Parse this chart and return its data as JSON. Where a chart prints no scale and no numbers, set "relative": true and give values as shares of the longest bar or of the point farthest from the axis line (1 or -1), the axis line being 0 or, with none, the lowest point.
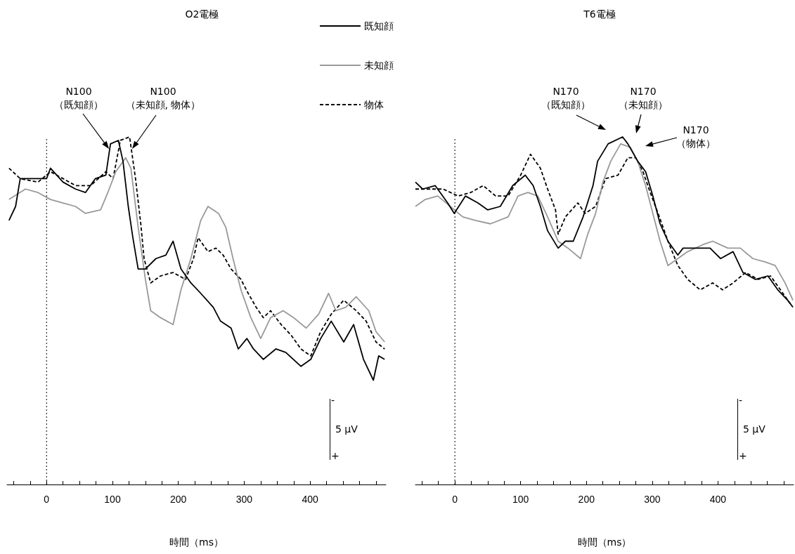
{
  "chart_data": [
    {
      "type": "line",
      "title": "O2電極",
      "xlabel": "時間（ms）",
      "relative": true,
      "legend": "top right",
      "grid": false,
      "xlim": [
        -60,
        515
      ],
      "xticks": [
        {
          "value": -50,
          "label": null
        },
        {
          "value": -25,
          "label": null
        },
        0,
        {
          "value": 25,
          "label": null
        },
        {
          "value": 50,
          "label": null
        },
        {
          "value": 75,
          "label": null
        },
        100,
        {
          "value": 125,
          "label": null
        },
        {
          "value": 150,
          "label": null
        },
        {
          "value": 175,
          "label": null
        },
        200,
        {
          "value": 225,
          "label": null
        },
        {
          "value": 250,
          "label": null
        },
        {
          "value": 275,
          "label": null
        },
        300,
        {
          "value": 325,
          "label": null
        },
        {
          "value": 350,
          "label": null
        },
        {
          "value": 375,
          "label": null
        },
        400,
        {
          "value": 425,
          "label": null
        },
        {
          "value": 450,
          "label": null
        },
        {
          "value": 475,
          "label": null
        },
        {
          "value": 500,
          "label": null
        }
      ],
      "tick_labels": "x",
      "ref_lines": [
        {
          "axis": "x",
          "value": 0,
          "line_style": "dotted",
          "color": "#000000"
        }
      ],
      "annotations": [
        "N100\n（既知顔）",
        "N100\n（未知顔, 物体）",
        "-",
        "5 μV",
        "+"
      ],
      "series": [
        {
          "name": "既知顔",
          "color": "#000000",
          "line_style": "solid",
          "x": [
            -57,
            -47,
            -40,
            -24,
            0,
            6,
            25,
            44,
            59,
            74,
            90,
            97,
            109,
            116,
            124,
            131,
            139,
            150,
            166,
            181,
            192,
            204,
            219,
            234,
            253,
            264,
            280,
            291,
            304,
            314,
            329,
            348,
            363,
            386,
            401,
            416,
            432,
            451,
            466,
            481,
            496,
            504,
            513
          ],
          "values": [
            0.76,
            0.8,
            0.88,
            0.88,
            0.88,
            0.91,
            0.87,
            0.85,
            0.84,
            0.88,
            0.89,
            0.98,
            0.99,
            0.93,
            0.8,
            0.71,
            0.62,
            0.62,
            0.65,
            0.66,
            0.7,
            0.62,
            0.58,
            0.55,
            0.51,
            0.47,
            0.45,
            0.39,
            0.42,
            0.39,
            0.36,
            0.39,
            0.38,
            0.34,
            0.36,
            0.42,
            0.47,
            0.41,
            0.46,
            0.36,
            0.3,
            0.37,
            0.36
          ]
        },
        {
          "name": "未知顔",
          "color": "#999999",
          "line_style": "solid",
          "x": [
            -57,
            -32,
            -13,
            6,
            25,
            44,
            59,
            82,
            93,
            105,
            120,
            128,
            139,
            150,
            158,
            173,
            192,
            204,
            219,
            234,
            245,
            261,
            272,
            283,
            295,
            310,
            325,
            340,
            359,
            375,
            394,
            413,
            428,
            439,
            454,
            470,
            489,
            500,
            513
          ],
          "values": [
            0.82,
            0.85,
            0.84,
            0.82,
            0.81,
            0.8,
            0.78,
            0.79,
            0.84,
            0.9,
            0.94,
            0.91,
            0.74,
            0.59,
            0.5,
            0.48,
            0.46,
            0.56,
            0.65,
            0.76,
            0.8,
            0.78,
            0.74,
            0.65,
            0.56,
            0.48,
            0.42,
            0.48,
            0.5,
            0.48,
            0.45,
            0.49,
            0.55,
            0.5,
            0.51,
            0.54,
            0.5,
            0.44,
            0.41
          ]
        },
        {
          "name": "物体",
          "color": "#000000",
          "line_style": "dashed",
          "x": [
            -57,
            -40,
            -13,
            6,
            25,
            44,
            67,
            90,
            101,
            112,
            126,
            135,
            143,
            148,
            158,
            173,
            192,
            211,
            223,
            230,
            245,
            257,
            268,
            280,
            295,
            306,
            318,
            329,
            340,
            356,
            371,
            386,
            401,
            416,
            432,
            451,
            470,
            485,
            500,
            513
          ],
          "values": [
            0.91,
            0.88,
            0.87,
            0.9,
            0.88,
            0.86,
            0.86,
            0.9,
            0.88,
            0.99,
            1.0,
            0.88,
            0.75,
            0.65,
            0.58,
            0.6,
            0.61,
            0.59,
            0.65,
            0.71,
            0.67,
            0.68,
            0.66,
            0.62,
            0.59,
            0.55,
            0.51,
            0.48,
            0.5,
            0.46,
            0.43,
            0.39,
            0.37,
            0.44,
            0.49,
            0.53,
            0.5,
            0.47,
            0.41,
            0.39
          ]
        }
      ]
    },
    {
      "type": "line",
      "title": "T6電極",
      "xlabel": "時間（ms）",
      "relative": true,
      "grid": false,
      "xlim": [
        -60,
        515
      ],
      "xticks": [
        {
          "value": -50,
          "label": null
        },
        {
          "value": -25,
          "label": null
        },
        0,
        {
          "value": 25,
          "label": null
        },
        {
          "value": 50,
          "label": null
        },
        {
          "value": 75,
          "label": null
        },
        100,
        {
          "value": 125,
          "label": null
        },
        {
          "value": 150,
          "label": null
        },
        {
          "value": 175,
          "label": null
        },
        200,
        {
          "value": 225,
          "label": null
        },
        {
          "value": 250,
          "label": null
        },
        {
          "value": 275,
          "label": null
        },
        300,
        {
          "value": 325,
          "label": null
        },
        {
          "value": 350,
          "label": null
        },
        {
          "value": 375,
          "label": null
        },
        400,
        {
          "value": 425,
          "label": null
        },
        {
          "value": 450,
          "label": null
        },
        {
          "value": 475,
          "label": null
        },
        {
          "value": 500,
          "label": null
        }
      ],
      "tick_labels": "x",
      "ref_lines": [
        {
          "axis": "x",
          "value": 0,
          "line_style": "dotted",
          "color": "#000000"
        }
      ],
      "annotations": [
        "N170\n（既知顔）",
        "N170\n（未知顔）",
        "N170\n（物体）",
        "-",
        "5 μV",
        "+"
      ],
      "series": [
        {
          "color": "#000000",
          "line_style": "solid",
          "x": [
            -60,
            -49,
            -30,
            -11,
            -1,
            16,
            35,
            50,
            69,
            88,
            107,
            119,
            130,
            141,
            157,
            168,
            180,
            195,
            210,
            217,
            233,
            255,
            263,
            278,
            290,
            301,
            312,
            324,
            339,
            347,
            366,
            388,
            404,
            423,
            438,
            457,
            476,
            491,
            506,
            514
          ],
          "values": [
            0.87,
            0.85,
            0.86,
            0.81,
            0.78,
            0.83,
            0.81,
            0.79,
            0.8,
            0.86,
            0.89,
            0.86,
            0.8,
            0.73,
            0.68,
            0.7,
            0.7,
            0.77,
            0.86,
            0.93,
            0.98,
            1.0,
            0.98,
            0.93,
            0.9,
            0.83,
            0.75,
            0.7,
            0.66,
            0.68,
            0.68,
            0.68,
            0.65,
            0.67,
            0.61,
            0.59,
            0.6,
            0.56,
            0.53,
            0.51
          ]
        },
        {
          "color": "#999999",
          "line_style": "solid",
          "x": [
            -60,
            -45,
            -26,
            -7,
            12,
            31,
            54,
            81,
            96,
            111,
            126,
            141,
            157,
            172,
            191,
            202,
            214,
            225,
            237,
            252,
            267,
            278,
            290,
            301,
            312,
            324,
            339,
            354,
            377,
            392,
            415,
            434,
            453,
            472,
            487,
            502,
            514
          ],
          "values": [
            0.8,
            0.82,
            0.83,
            0.8,
            0.77,
            0.76,
            0.75,
            0.77,
            0.83,
            0.84,
            0.83,
            0.77,
            0.7,
            0.68,
            0.65,
            0.72,
            0.78,
            0.87,
            0.93,
            0.98,
            0.97,
            0.93,
            0.86,
            0.78,
            0.7,
            0.63,
            0.65,
            0.67,
            0.69,
            0.7,
            0.68,
            0.68,
            0.65,
            0.64,
            0.63,
            0.58,
            0.53
          ]
        },
        {
          "color": "#000000",
          "line_style": "dashed",
          "x": [
            -60,
            -41,
            -18,
            5,
            24,
            43,
            62,
            81,
            100,
            115,
            130,
            141,
            153,
            157,
            168,
            187,
            198,
            214,
            229,
            248,
            263,
            275,
            286,
            297,
            309,
            324,
            339,
            354,
            373,
            392,
            407,
            423,
            442,
            461,
            480,
            495,
            510
          ],
          "values": [
            0.85,
            0.85,
            0.85,
            0.83,
            0.84,
            0.86,
            0.83,
            0.83,
            0.89,
            0.95,
            0.91,
            0.85,
            0.79,
            0.72,
            0.77,
            0.81,
            0.78,
            0.8,
            0.88,
            0.89,
            0.94,
            0.94,
            0.9,
            0.84,
            0.78,
            0.7,
            0.63,
            0.59,
            0.56,
            0.58,
            0.56,
            0.58,
            0.61,
            0.59,
            0.6,
            0.56,
            0.52
          ]
        }
      ]
    }
  ]
}
